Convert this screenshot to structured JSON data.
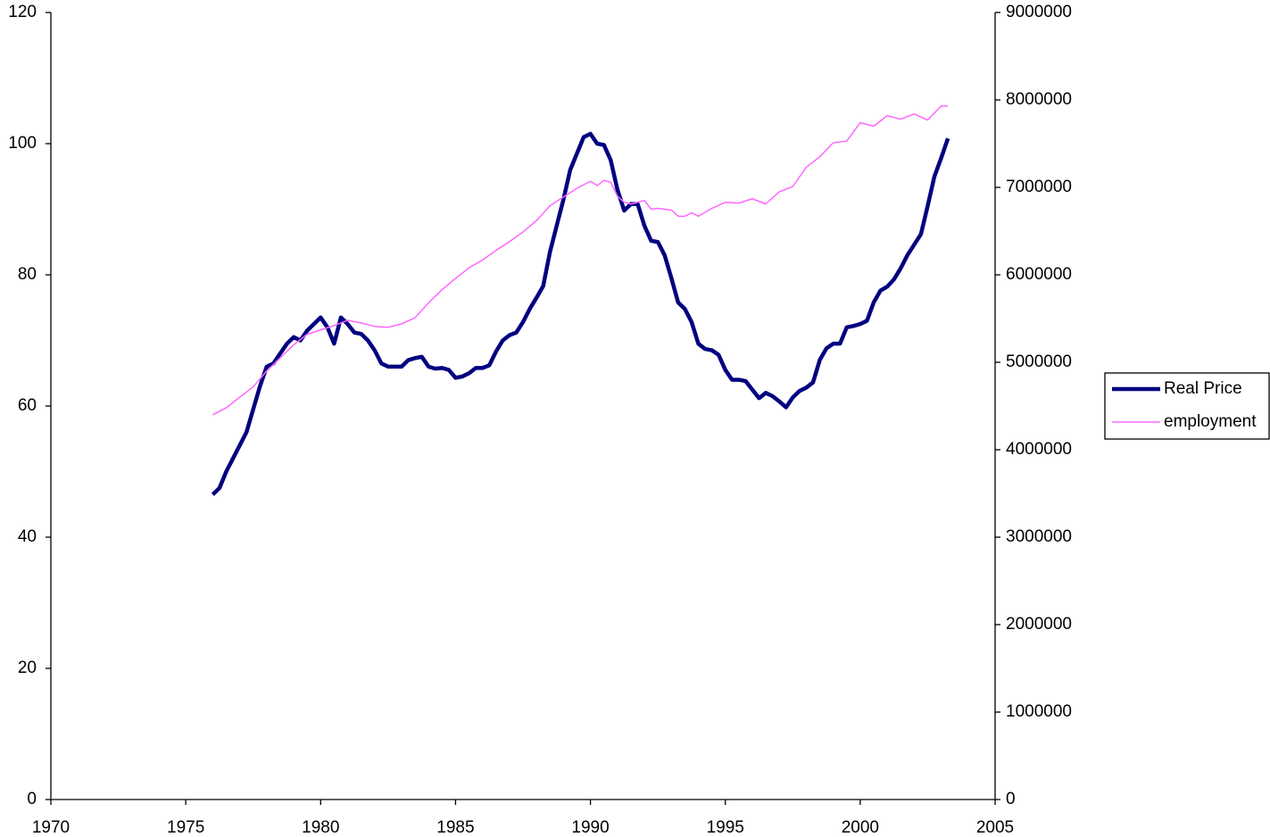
{
  "chart_data": {
    "type": "line",
    "xlim": [
      1970,
      2005
    ],
    "xticks": [
      1970,
      1975,
      1980,
      1985,
      1990,
      1995,
      2000,
      2005
    ],
    "ylim": [
      0,
      120
    ],
    "yticks": [
      0,
      20,
      40,
      60,
      80,
      100,
      120
    ],
    "y2lim": [
      0,
      9000000
    ],
    "y2ticks": [
      0,
      1000000,
      2000000,
      3000000,
      4000000,
      5000000,
      6000000,
      7000000,
      8000000,
      9000000
    ],
    "grid": false,
    "legend": "right",
    "series": [
      {
        "name": "Real Price",
        "color": "#000080",
        "axis": "y",
        "x": [
          1976,
          1976.25,
          1976.5,
          1976.75,
          1977,
          1977.25,
          1977.5,
          1977.75,
          1978,
          1978.25,
          1978.5,
          1978.75,
          1979,
          1979.25,
          1979.5,
          1979.75,
          1980,
          1980.25,
          1980.5,
          1980.75,
          1981,
          1981.25,
          1981.5,
          1981.75,
          1982,
          1982.25,
          1982.5,
          1982.75,
          1983,
          1983.25,
          1983.5,
          1983.75,
          1984,
          1984.25,
          1984.5,
          1984.75,
          1985,
          1985.25,
          1985.5,
          1985.75,
          1986,
          1986.25,
          1986.5,
          1986.75,
          1987,
          1987.25,
          1987.5,
          1987.75,
          1988,
          1988.25,
          1988.5,
          1988.75,
          1989,
          1989.25,
          1989.5,
          1989.75,
          1990,
          1990.25,
          1990.5,
          1990.75,
          1991,
          1991.25,
          1991.5,
          1991.75,
          1992,
          1992.25,
          1992.5,
          1992.75,
          1993,
          1993.25,
          1993.5,
          1993.75,
          1994,
          1994.25,
          1994.5,
          1994.75,
          1995,
          1995.25,
          1995.5,
          1995.75,
          1996,
          1996.25,
          1996.5,
          1996.75,
          1997,
          1997.25,
          1997.5,
          1997.75,
          1998,
          1998.25,
          1998.5,
          1998.75,
          1999,
          1999.25,
          1999.5,
          1999.75,
          2000,
          2000.25,
          2000.5,
          2000.75,
          2001,
          2001.25,
          2001.5,
          2001.75,
          2002,
          2002.25,
          2002.5,
          2002.75,
          2003,
          2003.25
        ],
        "values": [
          46.5,
          47.5,
          50,
          52,
          54,
          56,
          59.5,
          63,
          66,
          66.5,
          68,
          69.5,
          70.5,
          70,
          71.5,
          72.5,
          73.5,
          72,
          69.5,
          73.5,
          72.5,
          71.2,
          71,
          70,
          68.5,
          66.5,
          66,
          66,
          66,
          67,
          67.3,
          67.5,
          66,
          65.7,
          65.8,
          65.5,
          64.3,
          64.5,
          65,
          65.8,
          65.8,
          66.2,
          68.3,
          70,
          70.8,
          71.2,
          72.8,
          74.8,
          76.5,
          78.3,
          83.5,
          87.5,
          91.5,
          96,
          98.5,
          101,
          101.5,
          100,
          99.8,
          97.5,
          93,
          89.8,
          90.8,
          90.8,
          87.5,
          85.2,
          85,
          83,
          79.5,
          75.8,
          74.8,
          72.8,
          69.5,
          68.7,
          68.5,
          67.8,
          65.5,
          64,
          64,
          63.8,
          62.5,
          61.2,
          62,
          61.5,
          60.7,
          59.8,
          61.3,
          62.3,
          62.8,
          63.6,
          67,
          68.8,
          69.5,
          69.5,
          72,
          72.2,
          72.5,
          73,
          75.8,
          77.6,
          78.2,
          79.3,
          81,
          83,
          84.6,
          86.2,
          90.5,
          95,
          97.8,
          100.8
        ]
      },
      {
        "name": "employment",
        "color": "#ff66ff",
        "axis": "y2",
        "x": [
          1976,
          1976.5,
          1977,
          1977.5,
          1978,
          1978.5,
          1979,
          1979.5,
          1980,
          1980.5,
          1981,
          1981.5,
          1982,
          1982.5,
          1983,
          1983.5,
          1984,
          1984.5,
          1985,
          1985.5,
          1986,
          1986.5,
          1987,
          1987.5,
          1988,
          1988.5,
          1989,
          1989.5,
          1990,
          1990.25,
          1990.5,
          1990.75,
          1991,
          1991.25,
          1991.5,
          1992,
          1992.25,
          1992.5,
          1993,
          1993.25,
          1993.5,
          1993.75,
          1994,
          1994.5,
          1995,
          1995.5,
          1996,
          1996.5,
          1997,
          1997.5,
          1998,
          1998.5,
          1999,
          1999.5,
          2000,
          2000.5,
          2001,
          2001.5,
          2002,
          2002.5,
          2003,
          2003.25
        ],
        "values": [
          4400000,
          4480000,
          4600000,
          4720000,
          4900000,
          5050000,
          5200000,
          5320000,
          5370000,
          5420000,
          5480000,
          5450000,
          5410000,
          5400000,
          5440000,
          5510000,
          5680000,
          5830000,
          5960000,
          6080000,
          6170000,
          6280000,
          6380000,
          6490000,
          6620000,
          6790000,
          6890000,
          6990000,
          7070000,
          7020000,
          7080000,
          7060000,
          6900000,
          6830000,
          6810000,
          6850000,
          6750000,
          6760000,
          6740000,
          6670000,
          6670000,
          6710000,
          6670000,
          6760000,
          6830000,
          6820000,
          6870000,
          6810000,
          6950000,
          7010000,
          7230000,
          7350000,
          7510000,
          7530000,
          7740000,
          7700000,
          7820000,
          7780000,
          7840000,
          7770000,
          7930000,
          7930000
        ]
      }
    ]
  }
}
